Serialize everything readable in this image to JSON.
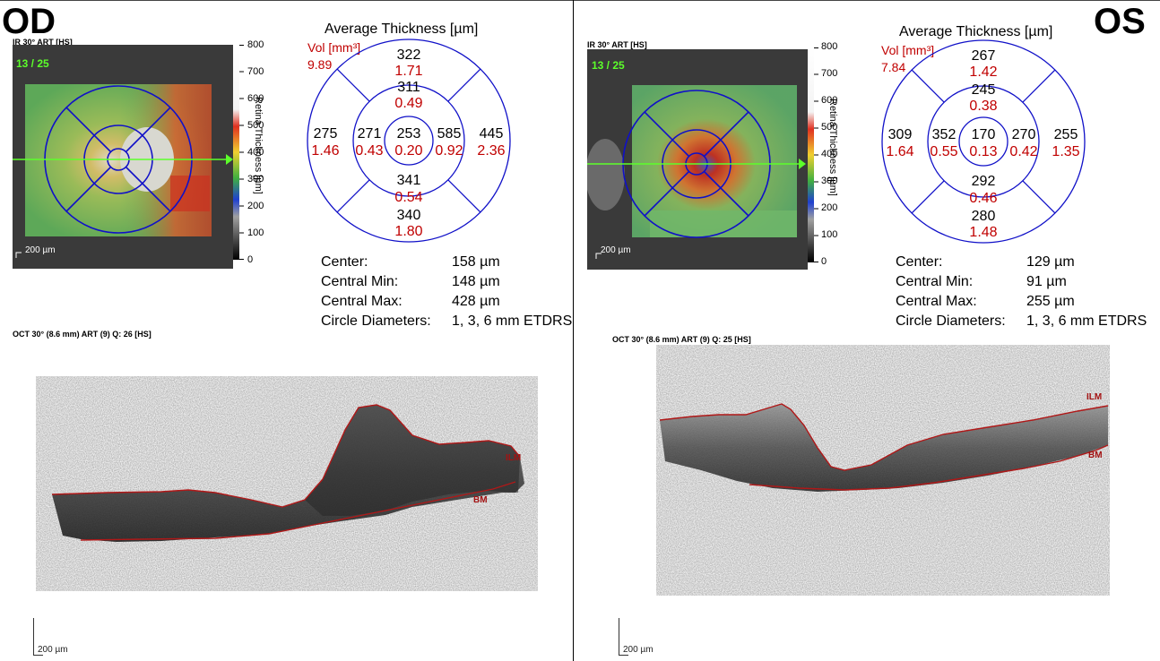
{
  "eyes": {
    "od": {
      "label": "OD",
      "ir_header": "IR 30° ART [HS]",
      "frame_counter": "13 / 25",
      "scale_label": "200 µm",
      "colorbar": {
        "ticks": [
          "800",
          "700",
          "600",
          "500",
          "400",
          "300",
          "200",
          "100",
          "0"
        ],
        "title": "Retina Thickness [µm]"
      },
      "grid_title": "Average Thickness [µm]",
      "vol_label": "Vol [mm³]",
      "total_vol": "9.89",
      "sectors": {
        "outer_sup": {
          "thk": "322",
          "vol": "1.71"
        },
        "inner_sup": {
          "thk": "311",
          "vol": "0.49"
        },
        "outer_left": {
          "thk": "275",
          "vol": "1.46"
        },
        "inner_left": {
          "thk": "271",
          "vol": "0.43"
        },
        "center": {
          "thk": "253",
          "vol": "0.20"
        },
        "inner_right": {
          "thk": "585",
          "vol": "0.92"
        },
        "outer_right": {
          "thk": "445",
          "vol": "2.36"
        },
        "inner_inf": {
          "thk": "341",
          "vol": "0.54"
        },
        "outer_inf": {
          "thk": "340",
          "vol": "1.80"
        }
      },
      "stats": [
        {
          "label": "Center:",
          "value": "158 µm"
        },
        {
          "label": "Central Min:",
          "value": "148 µm"
        },
        {
          "label": "Central Max:",
          "value": "428 µm"
        },
        {
          "label": "Circle Diameters:",
          "value": "1, 3, 6 mm ETDRS"
        }
      ],
      "oct_header": "OCT 30° (8.6 mm) ART (9) Q: 26 [HS]",
      "oct_scale": "200 µm",
      "ilm": "ILM",
      "bm": "BM"
    },
    "os": {
      "label": "OS",
      "ir_header": "IR 30° ART [HS]",
      "frame_counter": "13 / 25",
      "scale_label": "200 µm",
      "colorbar": {
        "ticks": [
          "800",
          "700",
          "600",
          "500",
          "400",
          "300",
          "200",
          "100",
          "0"
        ],
        "title": "Retina Thickness [µm]"
      },
      "grid_title": "Average Thickness [µm]",
      "vol_label": "Vol [mm³]",
      "total_vol": "7.84",
      "sectors": {
        "outer_sup": {
          "thk": "267",
          "vol": "1.42"
        },
        "inner_sup": {
          "thk": "245",
          "vol": "0.38"
        },
        "outer_left": {
          "thk": "309",
          "vol": "1.64"
        },
        "inner_left": {
          "thk": "352",
          "vol": "0.55"
        },
        "center": {
          "thk": "170",
          "vol": "0.13"
        },
        "inner_right": {
          "thk": "270",
          "vol": "0.42"
        },
        "outer_right": {
          "thk": "255",
          "vol": "1.35"
        },
        "inner_inf": {
          "thk": "292",
          "vol": "0.46"
        },
        "outer_inf": {
          "thk": "280",
          "vol": "1.48"
        }
      },
      "stats": [
        {
          "label": "Center:",
          "value": "129 µm"
        },
        {
          "label": "Central Min:",
          "value": "91 µm"
        },
        {
          "label": "Central Max:",
          "value": "255 µm"
        },
        {
          "label": "Circle Diameters:",
          "value": "1, 3, 6 mm ETDRS"
        }
      ],
      "oct_header": "OCT 30° (8.6 mm) ART (9) Q: 25 [HS]",
      "oct_scale": "200 µm",
      "ilm": "ILM",
      "bm": "BM"
    }
  },
  "colors": {
    "grid_blue": "#1010c8",
    "vol_red": "#c00000",
    "scan_green": "#5cff2a",
    "layer_red": "#b01818"
  }
}
